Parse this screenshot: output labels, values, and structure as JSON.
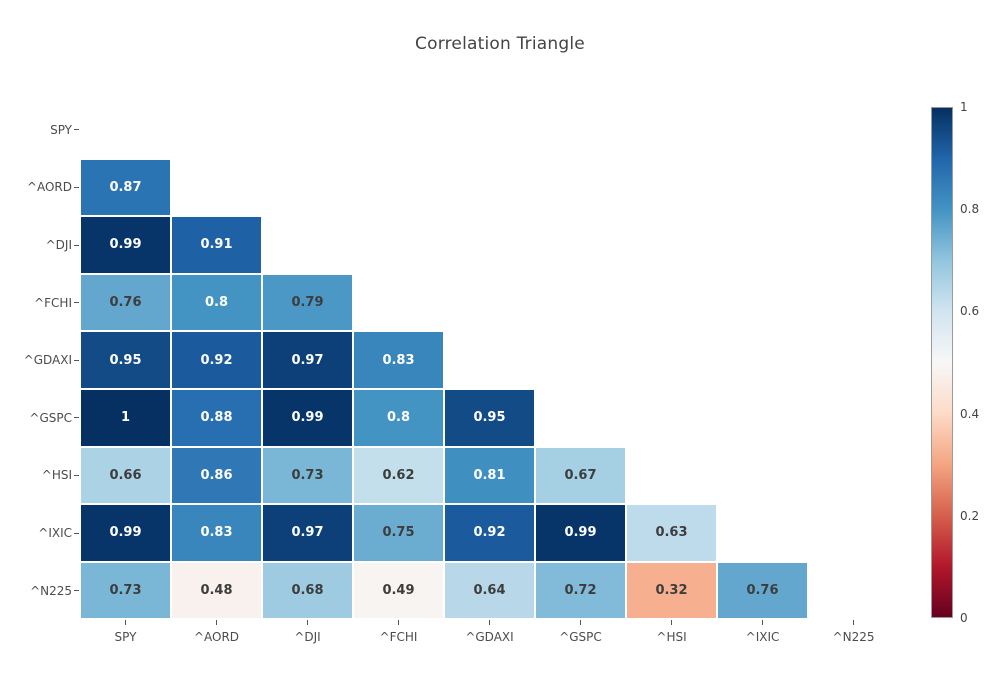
{
  "title": "Correlation Triangle",
  "chart_data": {
    "type": "heatmap",
    "title": "Correlation Triangle",
    "shape": "lower-triangle",
    "x_categories": [
      "SPY",
      "^AORD",
      "^DJI",
      "^FCHI",
      "^GDAXI",
      "^GSPC",
      "^HSI",
      "^IXIC",
      "^N225"
    ],
    "y_categories": [
      "SPY",
      "^AORD",
      "^DJI",
      "^FCHI",
      "^GDAXI",
      "^GSPC",
      "^HSI",
      "^IXIC",
      "^N225"
    ],
    "rows": [
      {
        "label": "SPY",
        "values": []
      },
      {
        "label": "^AORD",
        "values": [
          0.87
        ]
      },
      {
        "label": "^DJI",
        "values": [
          0.99,
          0.91
        ]
      },
      {
        "label": "^FCHI",
        "values": [
          0.76,
          0.8,
          0.79
        ]
      },
      {
        "label": "^GDAXI",
        "values": [
          0.95,
          0.92,
          0.97,
          0.83
        ]
      },
      {
        "label": "^GSPC",
        "values": [
          1,
          0.88,
          0.99,
          0.8,
          0.95
        ]
      },
      {
        "label": "^HSI",
        "values": [
          0.66,
          0.86,
          0.73,
          0.62,
          0.81,
          0.67
        ]
      },
      {
        "label": "^IXIC",
        "values": [
          0.99,
          0.83,
          0.97,
          0.75,
          0.92,
          0.99,
          0.63
        ]
      },
      {
        "label": "^N225",
        "values": [
          0.73,
          0.48,
          0.68,
          0.49,
          0.64,
          0.72,
          0.32,
          0.76
        ]
      }
    ],
    "zmin": 0,
    "zmax": 1,
    "grid": false,
    "legend_position": "right-colorbar",
    "colorscale": {
      "name": "RdBu",
      "stops": [
        [
          0.0,
          "#67001f"
        ],
        [
          0.1,
          "#b2182b"
        ],
        [
          0.2,
          "#d6604d"
        ],
        [
          0.3,
          "#f4a582"
        ],
        [
          0.4,
          "#fddbc7"
        ],
        [
          0.5,
          "#f7f7f7"
        ],
        [
          0.6,
          "#d1e5f0"
        ],
        [
          0.7,
          "#92c5de"
        ],
        [
          0.8,
          "#4393c3"
        ],
        [
          0.9,
          "#2166ac"
        ],
        [
          1.0,
          "#053061"
        ]
      ]
    },
    "colorbar_ticks": [
      {
        "value": 0,
        "label": "0"
      },
      {
        "value": 0.2,
        "label": "0.2"
      },
      {
        "value": 0.4,
        "label": "0.4"
      },
      {
        "value": 0.6,
        "label": "0.6"
      },
      {
        "value": 0.8,
        "label": "0.8"
      },
      {
        "value": 1,
        "label": "1"
      }
    ]
  },
  "colors": {
    "background": "#ffffff",
    "title_text": "#444444",
    "axis_label_text": "#4c4c4c",
    "cell_text_dark": "#3d3d3d",
    "cell_text_light": "#ffffff",
    "colorbar_border": "#9a9a9a",
    "tick_mark": "#565656"
  }
}
